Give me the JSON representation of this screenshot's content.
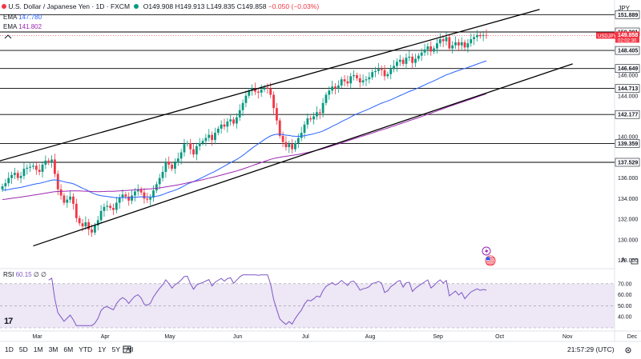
{
  "header": {
    "symbol": "U.S. Dollar / Japanese Yen · 1D · FXCM",
    "open": "O149.908",
    "high": "H149.913",
    "low": "L149.835",
    "close": "C149.858",
    "change": "−0.050 (−0.03%)",
    "currency": "JPY"
  },
  "indicators": {
    "ema1_label": "EMA",
    "ema1_value": "147.780",
    "ema2_label": "EMA",
    "ema2_value": "141.802",
    "rsi_label": "RSI",
    "rsi_value": "60.15",
    "rsi_extra": "∅ ∅"
  },
  "price_tags": {
    "symbol_tag": "USDJPY",
    "countdown": "02:02:30",
    "current_price": "149.858"
  },
  "timeframes": [
    "1D",
    "5D",
    "1M",
    "3M",
    "6M",
    "YTD",
    "1Y",
    "5Y",
    "All"
  ],
  "clock": "21:57:29 (UTC)",
  "scale_buttons": [
    "A",
    "L"
  ],
  "logo_text": "17",
  "colors": {
    "up": "#089981",
    "down": "#f23645",
    "ema_fast": "#2962ff",
    "ema_slow": "#9c27b0",
    "rsi": "#7e57c2",
    "rsi_band": "#ede7f6",
    "channel": "#000000",
    "levels": "#000000"
  },
  "icons": [
    "lightning-icon",
    "us-flag-icon",
    "settings-icon",
    "calendar-range-icon"
  ],
  "chart_data": {
    "type": "candlestick",
    "pair": "USD/JPY",
    "ylim": [
      127.5,
      153.0
    ],
    "y_ticks": [
      128.0,
      130.0,
      132.0,
      134.0,
      136.0,
      138.0,
      140.0,
      142.0,
      144.0,
      146.0,
      148.0,
      150.0,
      152.0
    ],
    "x_tick_labels": [
      "Mar",
      "Apr",
      "May",
      "Jun",
      "Jul",
      "Aug",
      "Sep",
      "Oct",
      "Nov",
      "Dec",
      "20"
    ],
    "horizontal_levels": [
      151.889,
      150.201,
      148.405,
      146.649,
      144.713,
      142.177,
      139.359,
      137.529
    ],
    "channel_lines": [
      {
        "name": "upper",
        "start": {
          "date": "2023-02-20",
          "price": 137.5
        },
        "end": {
          "date": "2023-10-26",
          "price": 152.4
        }
      },
      {
        "name": "lower",
        "start": {
          "date": "2023-03-10",
          "price": 129.4
        },
        "end": {
          "date": "2023-11-10",
          "price": 147.1
        }
      }
    ],
    "close_series": [
      135.2,
      135.5,
      136.0,
      136.3,
      136.5,
      136.0,
      136.2,
      136.9,
      137.0,
      137.1,
      137.2,
      136.8,
      136.6,
      137.3,
      137.7,
      137.5,
      137.8,
      136.4,
      134.9,
      134.3,
      133.6,
      133.9,
      134.2,
      133.5,
      132.1,
      131.6,
      131.3,
      131.7,
      131.0,
      130.7,
      131.4,
      131.9,
      132.8,
      133.2,
      133.3,
      133.1,
      132.9,
      133.6,
      134.1,
      134.4,
      134.2,
      133.8,
      134.3,
      134.7,
      134.9,
      134.6,
      134.0,
      133.9,
      134.1,
      134.8,
      135.4,
      136.0,
      136.6,
      137.6,
      137.3,
      136.9,
      137.5,
      137.9,
      138.5,
      139.3,
      139.4,
      138.8,
      138.3,
      139.1,
      139.4,
      139.6,
      139.9,
      140.2,
      139.7,
      140.4,
      140.8,
      141.2,
      141.0,
      141.5,
      141.7,
      141.3,
      141.9,
      142.6,
      143.3,
      144.0,
      144.5,
      144.7,
      144.4,
      144.3,
      144.6,
      144.8,
      144.7,
      144.1,
      142.8,
      141.6,
      140.1,
      139.5,
      139.0,
      139.3,
      138.8,
      139.4,
      139.9,
      140.4,
      141.2,
      141.8,
      141.7,
      142.0,
      142.4,
      142.3,
      143.3,
      144.1,
      144.5,
      144.9,
      144.7,
      145.0,
      145.6,
      145.4,
      145.2,
      145.9,
      146.0,
      145.7,
      145.3,
      145.5,
      145.6,
      145.8,
      146.3,
      146.4,
      146.6,
      146.5,
      145.9,
      146.1,
      146.6,
      146.9,
      147.3,
      147.5,
      147.1,
      147.7,
      147.8,
      147.2,
      147.6,
      147.9,
      148.2,
      148.5,
      148.8,
      148.3,
      148.6,
      149.1,
      149.5,
      149.3,
      149.7,
      148.6,
      148.9,
      149.2,
      148.9,
      149.2,
      148.7,
      149.1,
      149.5,
      149.7,
      149.9,
      149.8,
      149.9,
      149.858
    ]
  }
}
